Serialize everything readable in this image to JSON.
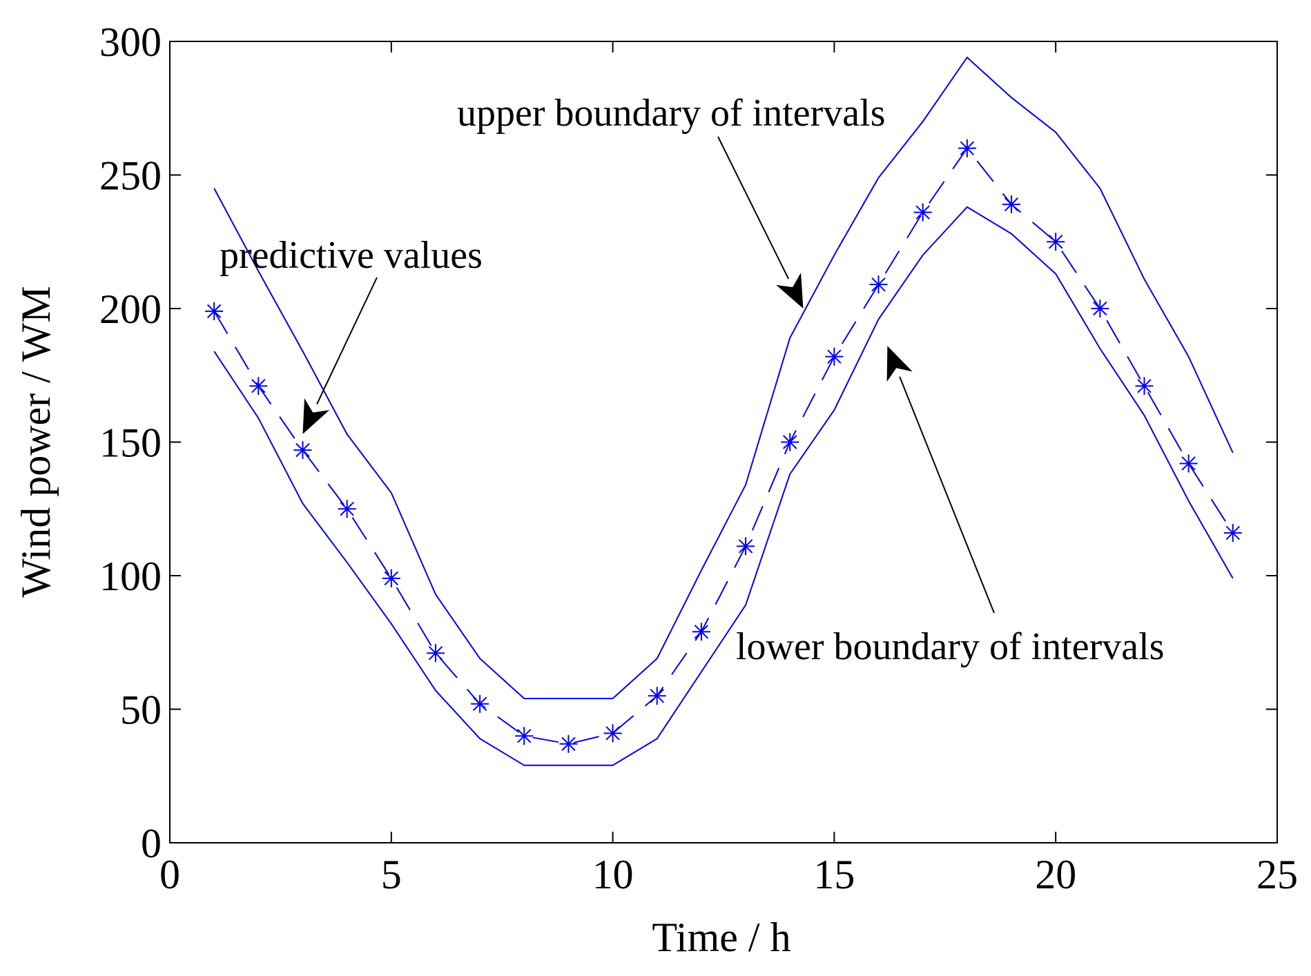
{
  "chart_data": {
    "type": "line",
    "title": "",
    "xlabel": "Time / h",
    "ylabel": "Wind power / WM",
    "xlim": [
      0,
      25
    ],
    "ylim": [
      0,
      300
    ],
    "xticks": [
      0,
      5,
      10,
      15,
      20,
      25
    ],
    "yticks": [
      0,
      50,
      100,
      150,
      200,
      250,
      300
    ],
    "grid": false,
    "x": [
      1,
      2,
      3,
      4,
      5,
      6,
      7,
      8,
      9,
      10,
      11,
      12,
      13,
      14,
      15,
      16,
      17,
      18,
      19,
      20,
      21,
      22,
      23,
      24
    ],
    "series": [
      {
        "name": "upper boundary of intervals",
        "style": "solid",
        "values": [
          245,
          214,
          184,
          153,
          131,
          93,
          69,
          54,
          54,
          54,
          69,
          102,
          134,
          189,
          220,
          249,
          270,
          294,
          279,
          266,
          245,
          211,
          182,
          146
        ]
      },
      {
        "name": "predictive values",
        "style": "dashed-star",
        "values": [
          199,
          171,
          147,
          125,
          99,
          71,
          52,
          40,
          37,
          41,
          55,
          79,
          111,
          150,
          182,
          209,
          236,
          260,
          239,
          225,
          200,
          171,
          142,
          116
        ]
      },
      {
        "name": "lower boundary of intervals",
        "style": "solid",
        "values": [
          184,
          159,
          127,
          105,
          82,
          57,
          39,
          29,
          29,
          29,
          39,
          64,
          89,
          138,
          162,
          196,
          220,
          238,
          228,
          213,
          185,
          160,
          128,
          99
        ]
      }
    ],
    "annotations": [
      {
        "text": "upper boundary of intervals",
        "target_x": 14.3,
        "target_y": 200
      },
      {
        "text": "predictive values",
        "target_x": 3.0,
        "target_y": 153
      },
      {
        "text": "lower boundary of intervals",
        "target_x": 16.2,
        "target_y": 186
      }
    ],
    "colors": {
      "series": "#0000ff",
      "axis": "#000000",
      "arrows": "#000000"
    }
  }
}
